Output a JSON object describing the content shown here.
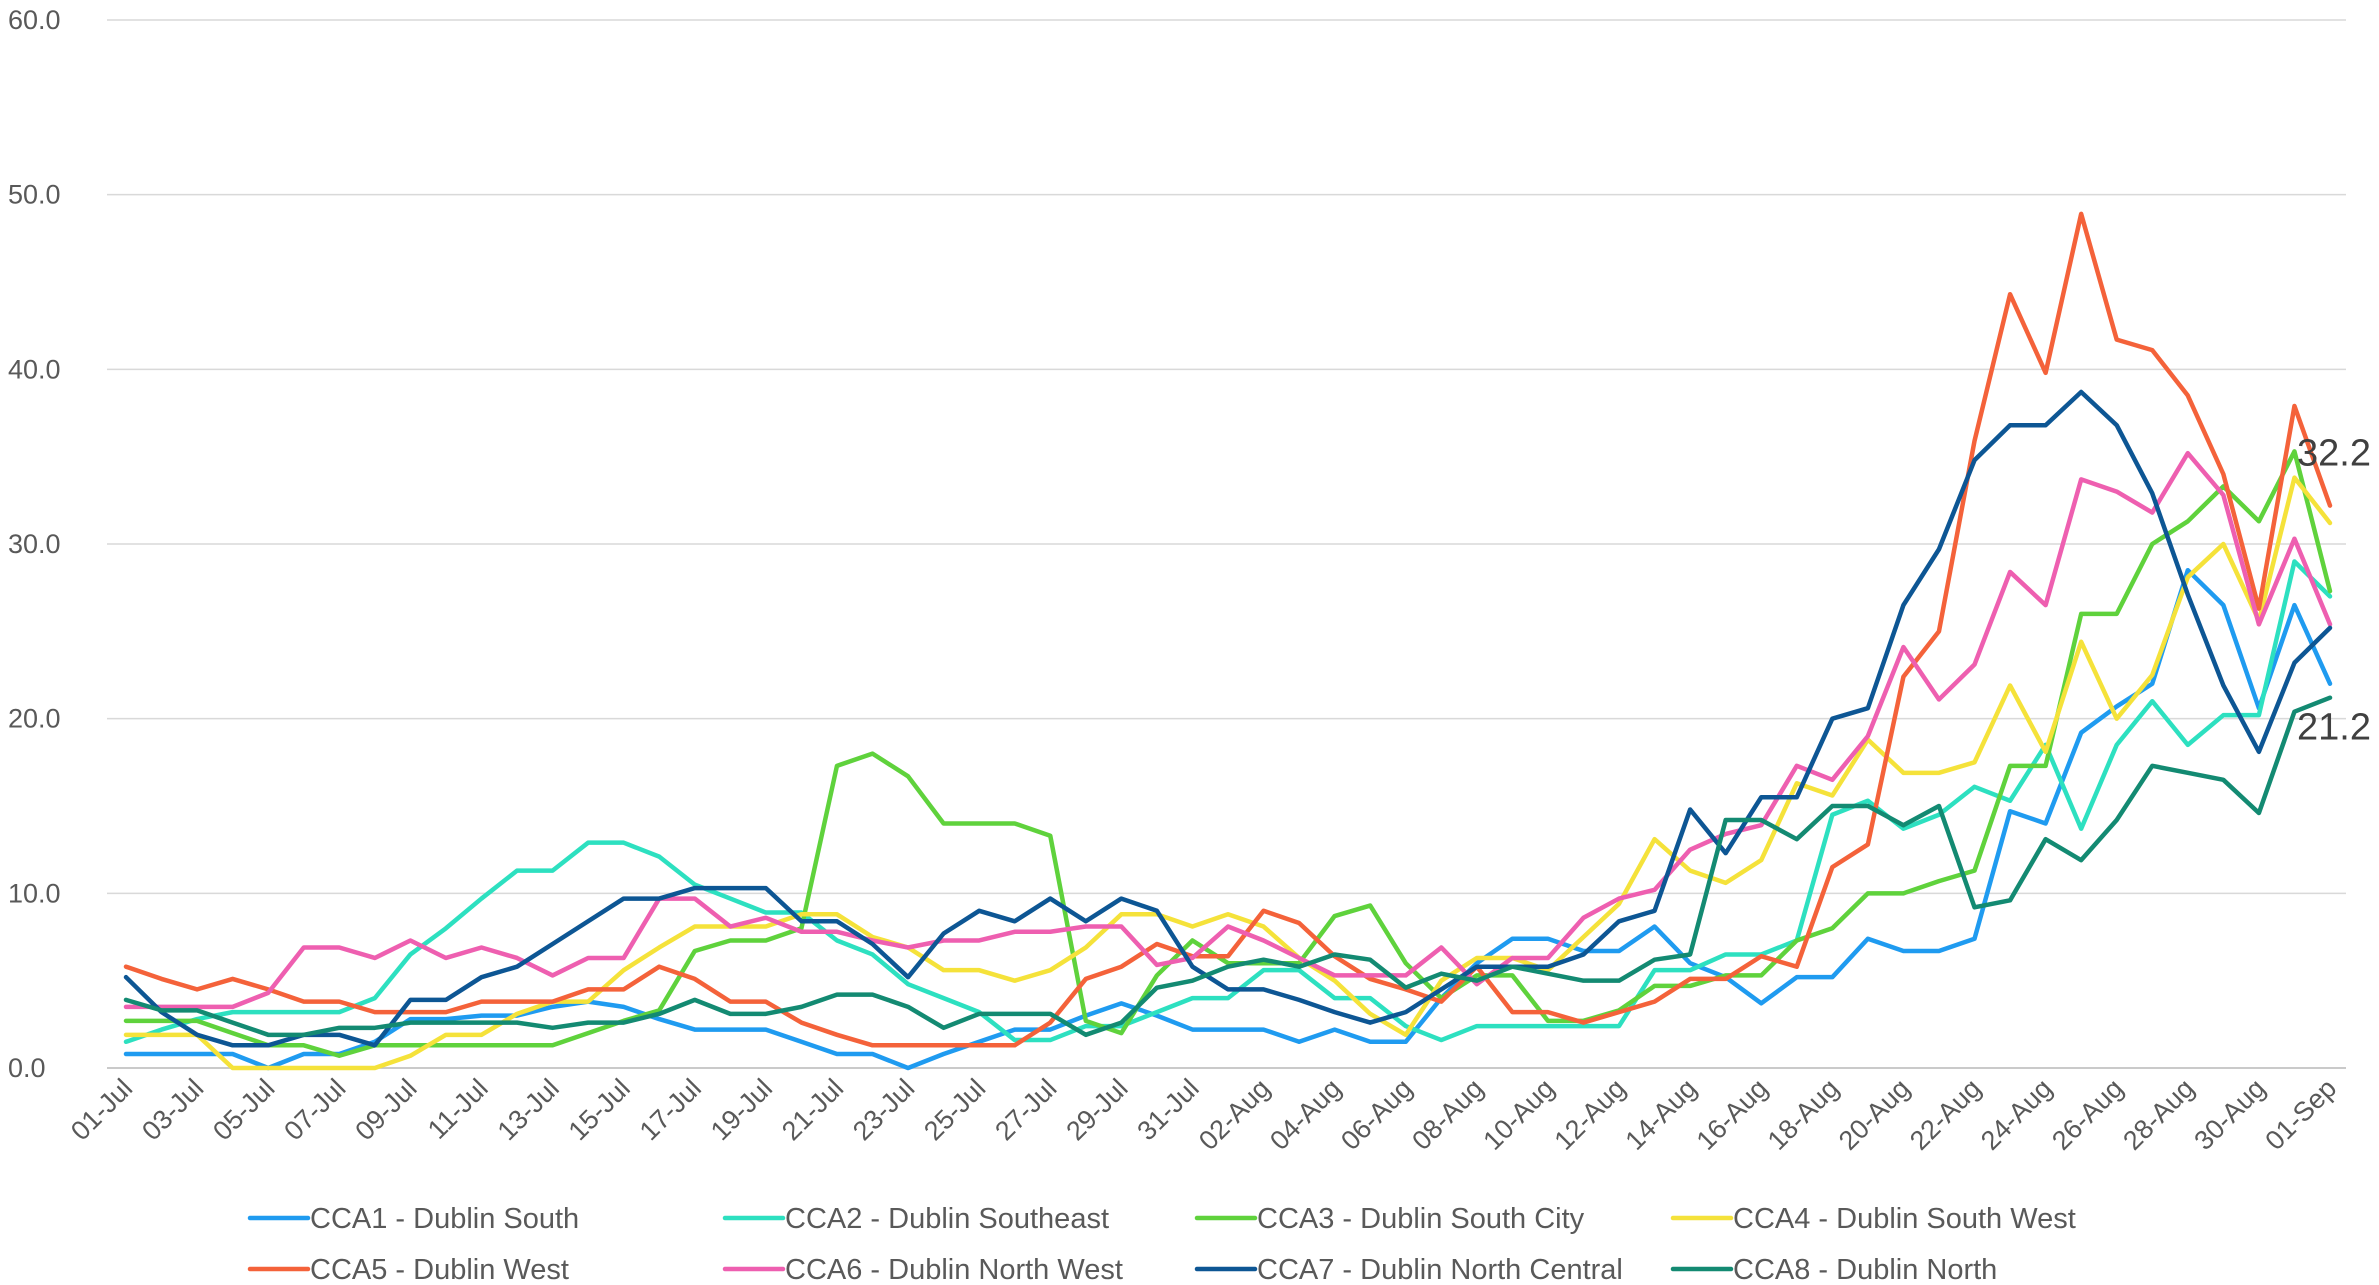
{
  "chart_data": {
    "type": "line",
    "categories": [
      "01-Jul",
      null,
      "03-Jul",
      null,
      "05-Jul",
      null,
      "07-Jul",
      null,
      "09-Jul",
      null,
      "11-Jul",
      null,
      "13-Jul",
      null,
      "15-Jul",
      null,
      "17-Jul",
      null,
      "19-Jul",
      null,
      "21-Jul",
      null,
      "23-Jul",
      null,
      "25-Jul",
      null,
      "27-Jul",
      null,
      "29-Jul",
      null,
      "31-Jul",
      null,
      "02-Aug",
      null,
      "04-Aug",
      null,
      "06-Aug",
      null,
      "08-Aug",
      null,
      "10-Aug",
      null,
      "12-Aug",
      null,
      "14-Aug",
      null,
      "16-Aug",
      null,
      "18-Aug",
      null,
      "20-Aug",
      null,
      "22-Aug",
      null,
      "24-Aug",
      null,
      "26-Aug",
      null,
      "28-Aug",
      null,
      "30-Aug",
      null,
      "01-Sep"
    ],
    "series": [
      {
        "name": "CCA1 - Dublin South",
        "color": "#1f9bf0",
        "values": [
          0.8,
          0.8,
          0.8,
          0.8,
          0,
          0.8,
          0.8,
          1.5,
          2.8,
          2.8,
          3,
          3,
          3.5,
          3.8,
          3.5,
          2.8,
          2.2,
          2.2,
          2.2,
          1.5,
          0.8,
          0.8,
          0,
          0.8,
          1.5,
          2.2,
          2.2,
          3,
          3.7,
          3,
          2.2,
          2.2,
          2.2,
          1.5,
          2.2,
          1.5,
          1.5,
          4,
          6,
          7.4,
          7.4,
          6.7,
          6.7,
          8.1,
          6,
          5.2,
          3.7,
          5.2,
          5.2,
          7.4,
          6.7,
          6.7,
          7.4,
          14.7,
          14,
          19.2,
          20.7,
          22,
          28.5,
          26.5,
          20.6,
          26.5,
          22
        ]
      },
      {
        "name": "CCA2 - Dublin Southeast",
        "color": "#2de0c0",
        "values": [
          1.5,
          2.2,
          2.8,
          3.2,
          3.2,
          3.2,
          3.2,
          4,
          6.5,
          8,
          9.7,
          11.3,
          11.3,
          12.9,
          12.9,
          12.1,
          10.5,
          9.7,
          8.9,
          8.9,
          7.3,
          6.5,
          4.8,
          4,
          3.2,
          1.6,
          1.6,
          2.4,
          2.4,
          3.2,
          4,
          4,
          5.6,
          5.6,
          4,
          4,
          2.4,
          1.6,
          2.4,
          2.4,
          2.4,
          2.4,
          2.4,
          5.6,
          5.6,
          6.5,
          6.5,
          7.3,
          14.5,
          15.3,
          13.7,
          14.5,
          16.1,
          15.3,
          18.5,
          13.7,
          18.5,
          21,
          18.5,
          20.2,
          20.2,
          29,
          27
        ]
      },
      {
        "name": "CCA3 - Dublin South City",
        "color": "#5fd23c",
        "values": [
          2.7,
          2.7,
          2.7,
          2,
          1.3,
          1.3,
          0.7,
          1.3,
          1.3,
          1.3,
          1.3,
          1.3,
          1.3,
          2,
          2.7,
          3.3,
          6.7,
          7.3,
          7.3,
          8,
          17.3,
          18,
          16.7,
          14,
          14,
          14,
          13.3,
          2.7,
          2,
          5.3,
          7.3,
          6,
          6,
          6,
          8.7,
          9.3,
          6,
          4,
          5.3,
          5.3,
          2.7,
          2.7,
          3.3,
          4.7,
          4.7,
          5.3,
          5.3,
          7.3,
          8,
          10,
          10,
          10.7,
          11.3,
          17.3,
          17.3,
          26,
          26,
          30,
          31.3,
          33.3,
          31.3,
          35.3,
          27.3
        ]
      },
      {
        "name": "CCA4 - Dublin South West",
        "color": "#f5e23a",
        "values": [
          1.9,
          1.9,
          1.9,
          0,
          0,
          0,
          0,
          0,
          0.7,
          1.9,
          1.9,
          3.1,
          3.8,
          3.8,
          5.6,
          6.9,
          8.1,
          8.1,
          8.1,
          8.8,
          8.8,
          7.5,
          6.9,
          5.6,
          5.6,
          5,
          5.6,
          6.9,
          8.8,
          8.8,
          8.1,
          8.8,
          8.1,
          6.3,
          5,
          3.1,
          1.9,
          5,
          6.3,
          6.3,
          5.6,
          7.5,
          9.4,
          13.1,
          11.3,
          10.6,
          11.9,
          16.3,
          15.6,
          18.8,
          16.9,
          16.9,
          17.5,
          21.9,
          18.1,
          24.4,
          20,
          22.5,
          28.1,
          30,
          25.6,
          33.8,
          31.2
        ]
      },
      {
        "name": "CCA5 - Dublin West",
        "color": "#f4623a",
        "values": [
          5.8,
          5.1,
          4.5,
          5.1,
          4.5,
          3.8,
          3.8,
          3.2,
          3.2,
          3.2,
          3.8,
          3.8,
          3.8,
          4.5,
          4.5,
          5.8,
          5.1,
          3.8,
          3.8,
          2.6,
          1.9,
          1.3,
          1.3,
          1.3,
          1.3,
          1.3,
          2.6,
          5.1,
          5.8,
          7.1,
          6.4,
          6.4,
          9,
          8.3,
          6.4,
          5.1,
          4.5,
          3.8,
          5.8,
          3.2,
          3.2,
          2.6,
          3.2,
          3.8,
          5.1,
          5.1,
          6.4,
          5.8,
          11.5,
          12.8,
          22.4,
          25,
          35.9,
          44.3,
          39.8,
          48.9,
          41.7,
          41.1,
          38.5,
          34,
          26.3,
          37.9,
          32.2
        ],
        "value_labels": [
          null,
          null,
          null,
          null,
          null,
          null,
          null,
          null,
          null,
          null,
          null,
          null,
          null,
          null,
          null,
          null,
          null,
          null,
          null,
          null,
          null,
          null,
          null,
          null,
          null,
          null,
          null,
          null,
          null,
          null,
          null,
          null,
          null,
          null,
          null,
          null,
          null,
          null,
          null,
          null,
          null,
          null,
          null,
          null,
          null,
          null,
          null,
          null,
          null,
          null,
          null,
          null,
          null,
          null,
          null,
          null,
          null,
          null,
          null,
          null,
          null,
          null,
          "32.2"
        ]
      },
      {
        "name": "CCA6 - Dublin North West",
        "color": "#ee5fb0",
        "values": [
          3.5,
          3.5,
          3.5,
          3.5,
          4.3,
          6.9,
          6.9,
          6.3,
          7.3,
          6.3,
          6.9,
          6.3,
          5.3,
          6.3,
          6.3,
          9.7,
          9.7,
          8.1,
          8.6,
          7.8,
          7.8,
          7.3,
          6.9,
          7.3,
          7.3,
          7.8,
          7.8,
          8.1,
          8.1,
          5.9,
          6.3,
          8.1,
          7.3,
          6.3,
          5.3,
          5.3,
          5.3,
          6.9,
          4.8,
          6.3,
          6.3,
          8.6,
          9.7,
          10.2,
          12.5,
          13.4,
          13.9,
          17.3,
          16.5,
          19,
          24.1,
          21.1,
          23.1,
          28.4,
          26.5,
          33.7,
          33,
          31.8,
          35.2,
          32.8,
          25.4,
          30.3,
          25.4
        ]
      },
      {
        "name": "CCA7 - Dublin North Central",
        "color": "#0d5694",
        "values": [
          5.2,
          3.2,
          1.9,
          1.3,
          1.3,
          1.9,
          1.9,
          1.3,
          3.9,
          3.9,
          5.2,
          5.8,
          7.1,
          8.4,
          9.7,
          9.7,
          10.3,
          10.3,
          10.3,
          8.4,
          8.4,
          7.1,
          5.2,
          7.7,
          9,
          8.4,
          9.7,
          8.4,
          9.7,
          9,
          5.8,
          4.5,
          4.5,
          3.9,
          3.2,
          2.6,
          3.2,
          4.5,
          5.8,
          5.8,
          5.8,
          6.5,
          8.4,
          9,
          14.8,
          12.3,
          15.5,
          15.5,
          20,
          20.6,
          26.5,
          29.7,
          34.8,
          36.8,
          36.8,
          38.7,
          36.8,
          32.9,
          27.1,
          21.9,
          18.1,
          23.2,
          25.2
        ]
      },
      {
        "name": "CCA8 - Dublin North",
        "color": "#138a72",
        "values": [
          3.9,
          3.3,
          3.3,
          2.6,
          1.9,
          1.9,
          2.3,
          2.3,
          2.6,
          2.6,
          2.6,
          2.6,
          2.3,
          2.6,
          2.6,
          3.1,
          3.9,
          3.1,
          3.1,
          3.5,
          4.2,
          4.2,
          3.5,
          2.3,
          3.1,
          3.1,
          3.1,
          1.9,
          2.6,
          4.6,
          5,
          5.8,
          6.2,
          5.8,
          6.5,
          6.2,
          4.6,
          5.4,
          5,
          5.8,
          5.4,
          5,
          5,
          6.2,
          6.5,
          14.2,
          14.2,
          13.1,
          15,
          15,
          13.9,
          15,
          9.2,
          9.6,
          13.1,
          11.9,
          14.2,
          17.3,
          16.9,
          16.5,
          14.6,
          20.4,
          21.2
        ],
        "value_labels": [
          null,
          null,
          null,
          null,
          null,
          null,
          null,
          null,
          null,
          null,
          null,
          null,
          null,
          null,
          null,
          null,
          null,
          null,
          null,
          null,
          null,
          null,
          null,
          null,
          null,
          null,
          null,
          null,
          null,
          null,
          null,
          null,
          null,
          null,
          null,
          null,
          null,
          null,
          null,
          null,
          null,
          null,
          null,
          null,
          null,
          null,
          null,
          null,
          null,
          null,
          null,
          null,
          null,
          null,
          null,
          null,
          null,
          null,
          null,
          null,
          null,
          null,
          "21.2"
        ]
      }
    ],
    "ylim": [
      0,
      60
    ],
    "yticks": [
      {
        "value": 0,
        "label": "0.0"
      },
      {
        "value": 10,
        "label": "10.0"
      },
      {
        "value": 20,
        "label": "20.0"
      },
      {
        "value": 30,
        "label": "30.0"
      },
      {
        "value": 40,
        "label": "40.0"
      },
      {
        "value": 50,
        "label": "50.0"
      },
      {
        "value": 60,
        "label": "60.0"
      }
    ],
    "grid": true,
    "legend": "bottom"
  }
}
